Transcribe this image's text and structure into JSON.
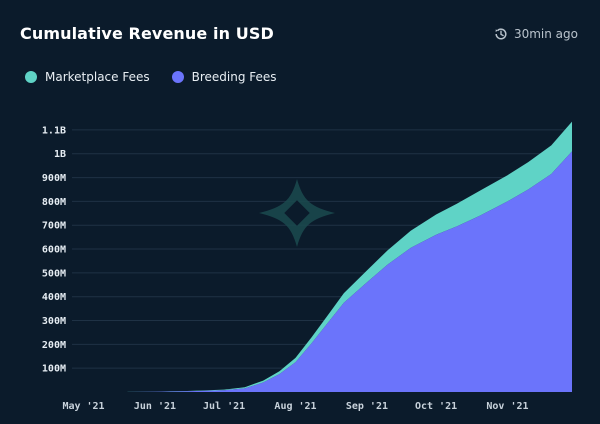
{
  "header": {
    "title": "Cumulative Revenue in USD",
    "updated": "30min ago",
    "clock_icon": "history-clock-icon"
  },
  "colors": {
    "background": "#0b1b2b",
    "marketplace": "#5fd3c6",
    "breeding": "#6b74fb",
    "grid": "#1f3245",
    "watermark": "#1b4a4f"
  },
  "chart_data": {
    "type": "area",
    "stacked": true,
    "title": "Cumulative Revenue in USD",
    "xlabel": "",
    "ylabel": "",
    "ylim": [
      0,
      1150000000
    ],
    "y_ticks": [
      {
        "value": 100000000,
        "label": "100M"
      },
      {
        "value": 200000000,
        "label": "200M"
      },
      {
        "value": 300000000,
        "label": "300M"
      },
      {
        "value": 400000000,
        "label": "400M"
      },
      {
        "value": 500000000,
        "label": "500M"
      },
      {
        "value": 600000000,
        "label": "600M"
      },
      {
        "value": 700000000,
        "label": "700M"
      },
      {
        "value": 800000000,
        "label": "800M"
      },
      {
        "value": 900000000,
        "label": "900M"
      },
      {
        "value": 1000000000,
        "label": "1B"
      },
      {
        "value": 1100000000,
        "label": "1.1B"
      }
    ],
    "x_ticks": [
      {
        "date": "2021-05-01",
        "label": "May '21"
      },
      {
        "date": "2021-06-01",
        "label": "Jun '21"
      },
      {
        "date": "2021-07-01",
        "label": "Jul '21"
      },
      {
        "date": "2021-08-01",
        "label": "Aug '21"
      },
      {
        "date": "2021-09-01",
        "label": "Sep '21"
      },
      {
        "date": "2021-10-01",
        "label": "Oct '21"
      },
      {
        "date": "2021-11-01",
        "label": "Nov '21"
      }
    ],
    "x": [
      "2021-04-26",
      "2021-05-15",
      "2021-06-01",
      "2021-06-15",
      "2021-07-01",
      "2021-07-10",
      "2021-07-18",
      "2021-07-25",
      "2021-08-01",
      "2021-08-08",
      "2021-08-15",
      "2021-08-22",
      "2021-09-01",
      "2021-09-10",
      "2021-09-20",
      "2021-10-01",
      "2021-10-10",
      "2021-10-20",
      "2021-11-01",
      "2021-11-10",
      "2021-11-20",
      "2021-11-29"
    ],
    "series": [
      {
        "name": "Breeding Fees",
        "values": [
          0,
          100000,
          1000000,
          3000000,
          7000000,
          15000000,
          40000000,
          75000000,
          125000000,
          205000000,
          290000000,
          375000000,
          460000000,
          535000000,
          605000000,
          660000000,
          695000000,
          740000000,
          800000000,
          850000000,
          915000000,
          1010000000
        ]
      },
      {
        "name": "Marketplace Fees",
        "values": [
          0,
          100000,
          500000,
          1000000,
          3000000,
          5000000,
          8000000,
          12000000,
          18000000,
          25000000,
          32000000,
          40000000,
          50000000,
          60000000,
          72000000,
          85000000,
          95000000,
          105000000,
          110000000,
          115000000,
          120000000,
          125000000
        ]
      }
    ],
    "legend_position": "top-left",
    "grid": true
  },
  "legend": {
    "items": [
      {
        "label": "Marketplace Fees",
        "color": "#5fd3c6"
      },
      {
        "label": "Breeding Fees",
        "color": "#6b74fb"
      }
    ]
  }
}
